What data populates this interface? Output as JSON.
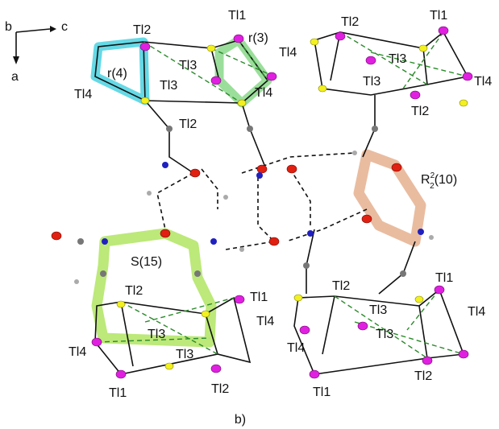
{
  "axes": {
    "b": "b",
    "c": "c",
    "a": "a"
  },
  "atom_labels": [
    "Tl2",
    "Tl1",
    "Tl3",
    "Tl4",
    "Tl4",
    "Tl3",
    "Tl2",
    "Tl4",
    "Tl2",
    "Tl1",
    "Tl3",
    "Tl3",
    "Tl4",
    "Tl2",
    "Tl2",
    "Tl1",
    "Tl4",
    "Tl3",
    "Tl3",
    "Tl4",
    "Tl1",
    "Tl2",
    "Tl1",
    "Tl2",
    "Tl3",
    "Tl4",
    "Tl3",
    "Tl4",
    "Tl2",
    "Tl1"
  ],
  "motifs": {
    "r4": "r(4)",
    "r3": "r(3)",
    "s15": "S(15)",
    "R": {
      "symbol": "R",
      "superscript": "2",
      "subscript": "2",
      "size": "(10)"
    }
  },
  "caption": "b)"
}
